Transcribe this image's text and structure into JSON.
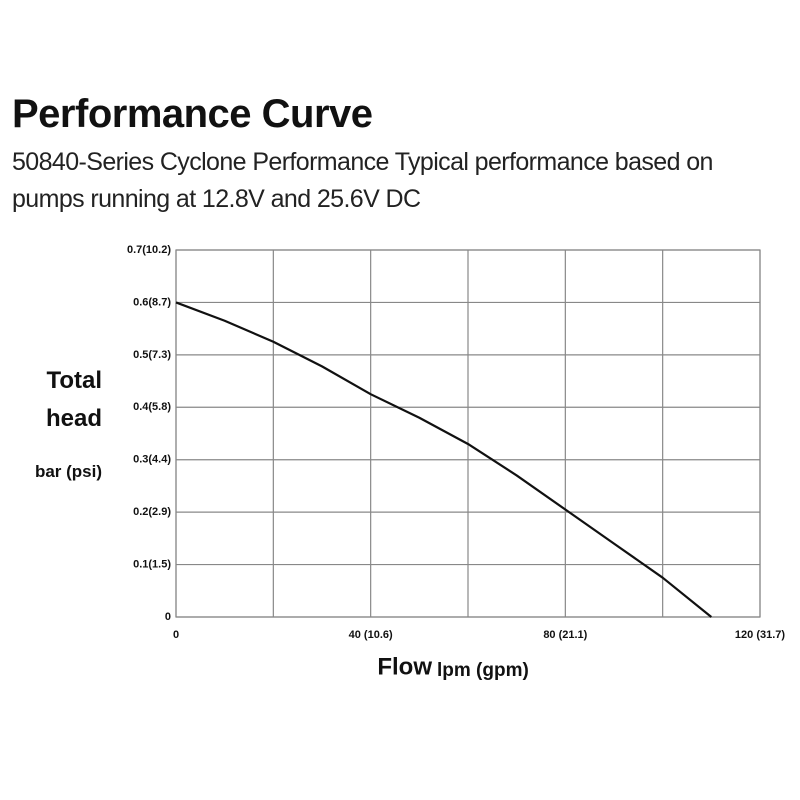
{
  "chart_data": {
    "type": "line",
    "title": "Performance Curve",
    "subtitle": "50840-Series Cyclone Performance Typical performance based on pumps running at 12.8V and 25.6V DC",
    "y_label": "Total head",
    "y_unit": "bar (psi)",
    "x_label": "Flow",
    "x_unit": "lpm (gpm)",
    "x": [
      0,
      10,
      20,
      30,
      40,
      50,
      60,
      70,
      80,
      90,
      100,
      110
    ],
    "series": [
      {
        "color": "#111111",
        "values": [
          0.6,
          0.565,
          0.525,
          0.478,
          0.425,
          0.38,
          0.33,
          0.27,
          0.205,
          0.14,
          0.075,
          0
        ]
      }
    ],
    "xlim": [
      0,
      120
    ],
    "ylim": [
      0,
      0.7
    ],
    "xticks": [
      0,
      {
        "value": 40,
        "label": "40 (10.6)"
      },
      {
        "value": 80,
        "label": "80 (21.1)"
      },
      {
        "value": 120,
        "label": "120 (31.7)"
      }
    ],
    "x_minor_ticks": [
      20,
      60,
      100
    ],
    "yticks": [
      0,
      {
        "value": 0.1,
        "label": "0.1(1.5)"
      },
      {
        "value": 0.2,
        "label": "0.2(2.9)"
      },
      {
        "value": 0.3,
        "label": "0.3(4.4)"
      },
      {
        "value": 0.4,
        "label": "0.4(5.8)"
      },
      {
        "value": 0.5,
        "label": "0.5(7.3)"
      },
      {
        "value": 0.6,
        "label": "0.6(8.7)"
      },
      {
        "value": 0.7,
        "label": "0.7(10.2)"
      }
    ],
    "grid": true
  }
}
